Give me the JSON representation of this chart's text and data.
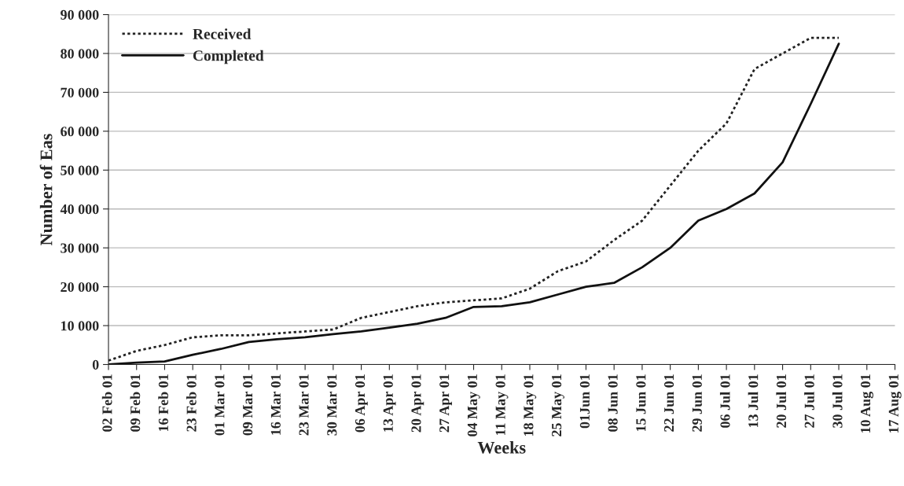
{
  "chart_data": {
    "type": "line",
    "xlabel": "Weeks",
    "ylabel": "Number of Eas",
    "categories": [
      "02 Feb 01",
      "09 Feb 01",
      "16 Feb 01",
      "23 Feb 01",
      "01 Mar 01",
      "09 Mar 01",
      "16 Mar 01",
      "23 Mar 01",
      "30 Mar 01",
      "06 Apr 01",
      "13 Apr 01",
      "20 Apr 01",
      "27 Apr 01",
      "04 May 01",
      "11 May 01",
      "18 May 01",
      "25 May 01",
      "01Jun 01",
      "08 Jun 01",
      "15 Jun 01",
      "22 Jun 01",
      "29 Jun 01",
      "06 Jul 01",
      "13 Jul 01",
      "20 Jul 01",
      "27 Jul 01",
      "30 Jul 01",
      "10 Aug 01",
      "17 Aug 01"
    ],
    "series": [
      {
        "name": "Received",
        "color": "#222222",
        "line_style": "dotted",
        "values": [
          1000,
          3500,
          5000,
          7000,
          7500,
          7500,
          8000,
          8500,
          9000,
          12000,
          13500,
          15000,
          16000,
          16500,
          17000,
          19500,
          24000,
          26500,
          32000,
          37000,
          46000,
          55000,
          62000,
          76000,
          80000,
          84000,
          84000,
          null,
          null
        ]
      },
      {
        "name": "Completed",
        "color": "#111111",
        "line_style": "solid",
        "values": [
          0,
          500,
          800,
          2500,
          4000,
          5800,
          6500,
          7000,
          7800,
          8500,
          9500,
          10500,
          12000,
          14800,
          15000,
          16000,
          18000,
          20000,
          21000,
          25000,
          30000,
          37000,
          40000,
          44000,
          52000,
          67000,
          82500,
          null,
          null
        ]
      }
    ],
    "ylim": [
      0,
      90000
    ],
    "yticks": [
      {
        "value": 0,
        "label": "0"
      },
      {
        "value": 10000,
        "label": "10 000"
      },
      {
        "value": 20000,
        "label": "20 000"
      },
      {
        "value": 30000,
        "label": "30 000"
      },
      {
        "value": 40000,
        "label": "40 000"
      },
      {
        "value": 50000,
        "label": "50 000"
      },
      {
        "value": 60000,
        "label": "60 000"
      },
      {
        "value": 70000,
        "label": "70 000"
      },
      {
        "value": 80000,
        "label": "80 000"
      },
      {
        "value": 90000,
        "label": "90 000"
      }
    ],
    "grid": "y",
    "legend": "top left",
    "marker": "none"
  }
}
